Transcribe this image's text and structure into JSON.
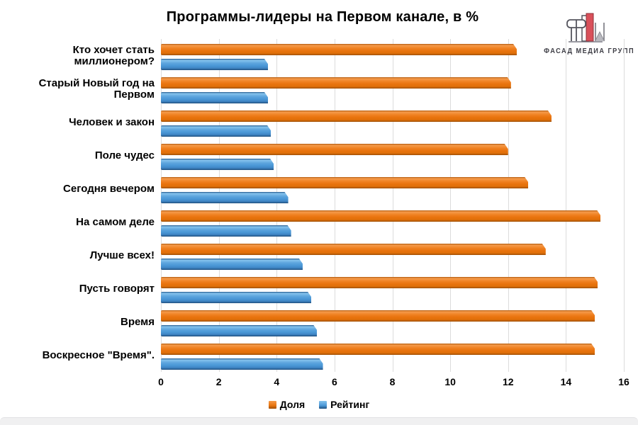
{
  "logo": {
    "text": "ФАСАД МЕДИА ГРУПП",
    "accent_color": "#d9505a",
    "outline_color": "#55555e"
  },
  "colors": {
    "share_orange": "#e8730d",
    "rating_blue": "#4a97d6",
    "gridline": "#dcdcdc",
    "text": "#000000",
    "background": "#ffffff",
    "footer_strip": "#f0f0f1"
  },
  "chart_data": {
    "type": "bar",
    "orientation": "horizontal",
    "title": "Программы-лидеры на Первом канале, в %",
    "categories": [
      "Кто хочет стать миллионером?",
      "Старый Новый год на Первом",
      "Человек и закон",
      "Поле чудес",
      "Сегодня вечером",
      "На самом деле",
      "Лучше всех!",
      "Пусть говорят",
      "Время",
      "Воскресное \"Время\"."
    ],
    "series": [
      {
        "name": "Доля",
        "color": "#e8730d",
        "values": [
          12.3,
          12.1,
          13.5,
          12,
          12.7,
          15.2,
          13.3,
          15.1,
          15,
          15
        ],
        "labels": [
          "12,3",
          "12,1",
          "13,5",
          "12",
          "12,7",
          "15,2",
          "13,3",
          "15,1",
          "15",
          "15"
        ]
      },
      {
        "name": "Рейтинг",
        "color": "#4a97d6",
        "values": [
          3.7,
          3.7,
          3.8,
          3.9,
          4.4,
          4.5,
          4.9,
          5.2,
          5.4,
          5.6
        ],
        "labels": [
          "3,7",
          "3,7",
          "3,8",
          "3,9",
          "4,4",
          "4,5",
          "4,9",
          "5,2",
          "5,4",
          "5,6"
        ]
      }
    ],
    "xlabel": "",
    "ylabel": "",
    "xlim": [
      0,
      16
    ],
    "x_ticks": [
      0,
      2,
      4,
      6,
      8,
      10,
      12,
      14,
      16
    ],
    "grid": true,
    "legend_position": "bottom"
  }
}
